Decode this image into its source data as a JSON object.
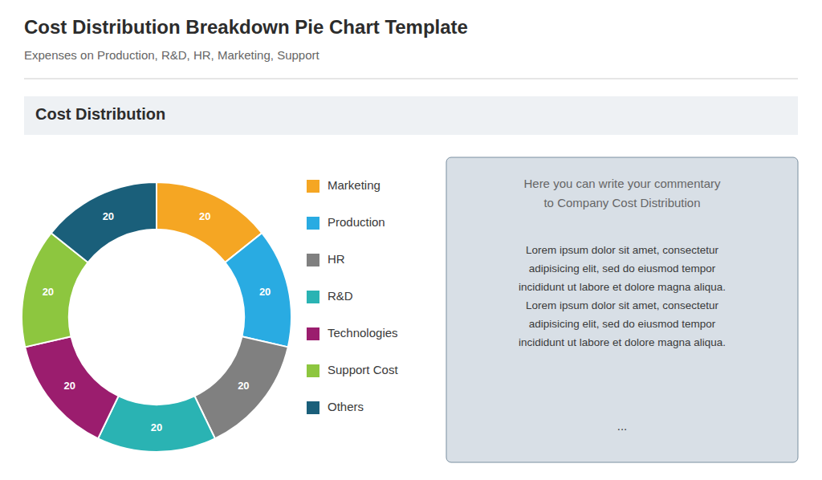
{
  "chart_data": {
    "type": "donut",
    "title": "Cost Distribution Breakdown Pie Chart Template",
    "subtitle": "Expenses on Production, R&D, HR, Marketing, Support",
    "categories": [
      "Marketing",
      "Production",
      "HR",
      "R&D",
      "Technologies",
      "Support Cost",
      "Others"
    ],
    "values": [
      20,
      20,
      20,
      20,
      20,
      20,
      20
    ],
    "colors": [
      "#f5a623",
      "#29abe2",
      "#808080",
      "#2ab3b3",
      "#9b1d6e",
      "#8dc63f",
      "#1a5f7a"
    ],
    "data_labels": true,
    "legend": "right",
    "annotations": [
      "Cost Distribution",
      "Here you can write your commentary\nto Company Cost Distribution",
      "Lorem ipsum dolor sit amet, consectetur\nadipisicing elit, sed do eiusmod tempor\nincididunt ut labore et dolore magna aliqua.\nLorem ipsum dolor sit amet, consectetur\nadipisicing elit, sed do eiusmod tempor\nincididunt ut labore et dolore magna aliqua.",
      "..."
    ]
  }
}
